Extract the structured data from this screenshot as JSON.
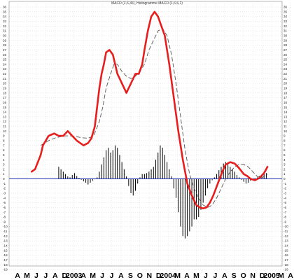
{
  "chart_data": {
    "type": "line",
    "title": "MACD (2,6,36), Histogramme MACD (1,6,6,1)",
    "y_tick_labels": [
      "36",
      "35",
      "34",
      "33",
      "32",
      "31",
      "30",
      "29",
      "28",
      "27",
      "26",
      "25",
      "24",
      "23",
      "22",
      "21",
      "20",
      "19",
      "18",
      "17",
      "16",
      "15",
      "14",
      "13",
      "12",
      "11",
      "10",
      "9",
      "8",
      "7",
      "6",
      "5",
      "4",
      "3",
      "2",
      "1",
      "0",
      "-1",
      "-2",
      "-3",
      "-4",
      "-5",
      "-6",
      "-7",
      "-8",
      "-9",
      "-10",
      "-11",
      "-12",
      "-13",
      "-14",
      "-15",
      "-16",
      "-17",
      "-18",
      "-19"
    ],
    "ylim": [
      -19,
      36
    ],
    "xlim": [
      0,
      24.2
    ],
    "x_tick_labels": [
      "A",
      "M",
      "J",
      "J",
      "A",
      "D",
      "2003",
      "A",
      "M",
      "J",
      "J",
      "A",
      "S",
      "O",
      "N",
      "D",
      "2004",
      "M",
      "A",
      "M",
      "J",
      "J",
      "A",
      "S",
      "O",
      "N",
      "D",
      "2005",
      "M",
      "A"
    ],
    "grid": true,
    "zero_line": 0,
    "series": [
      {
        "style": "thick",
        "color": "#e61e1e",
        "x": [
          2.0,
          2.3,
          2.8,
          3.0,
          3.5,
          4.0,
          4.4,
          4.8,
          5.2,
          5.6,
          6.0,
          6.6,
          7.0,
          7.3,
          7.6,
          7.8,
          8.0,
          8.2,
          8.4,
          8.6,
          8.9,
          9.2,
          9.6,
          10.0,
          10.4,
          10.7,
          11.0,
          11.2,
          11.5,
          11.8,
          12.0,
          12.3,
          12.6,
          12.9,
          13.2,
          13.5,
          13.8,
          14.2,
          14.6,
          15.0,
          15.4,
          15.8,
          16.2,
          16.6,
          16.9,
          17.2,
          17.5,
          17.8,
          18.1,
          18.5,
          18.9,
          19.2,
          19.6,
          20.0,
          20.4,
          20.8,
          21.1,
          21.4,
          21.8,
          22.2,
          22.6,
          22.9
        ],
        "y": [
          1.5,
          2,
          5,
          7,
          9,
          9.5,
          9,
          9,
          10,
          9,
          8,
          7,
          7.5,
          8.5,
          11,
          15,
          19,
          22,
          24,
          26.5,
          27,
          26,
          22,
          20,
          18,
          19.5,
          21,
          22,
          22,
          24,
          27,
          31,
          34,
          35,
          34,
          32,
          30,
          24,
          17,
          10,
          4,
          -1,
          -3.5,
          -5.5,
          -6,
          -6.2,
          -6,
          -5,
          -3.5,
          -1,
          1.5,
          3,
          3.5,
          3.2,
          2.2,
          1,
          0.6,
          0,
          -0.3,
          0.2,
          1.2,
          2.5
        ]
      },
      {
        "style": "dashed",
        "color": "#555555",
        "x": [
          2.8,
          3.5,
          4.0,
          4.5,
          5.0,
          5.5,
          6.0,
          6.5,
          7.0,
          7.5,
          8.0,
          8.3,
          8.6,
          9.0,
          9.3,
          9.6,
          10.0,
          10.4,
          10.8,
          11.2,
          11.6,
          12.0,
          12.4,
          12.8,
          13.2,
          13.6,
          14.0,
          14.4,
          14.8,
          15.2,
          15.6,
          16.0,
          16.4,
          16.8,
          17.2,
          17.6,
          18.0,
          18.4,
          18.8,
          19.2,
          19.6,
          20.0,
          20.4,
          20.8,
          21.2,
          21.6,
          22.0,
          22.4,
          22.9
        ],
        "y": [
          7,
          8,
          8.5,
          8.8,
          9,
          9,
          8.8,
          8.6,
          8.5,
          9,
          12,
          15,
          19,
          22,
          24,
          24,
          22.5,
          21.5,
          21,
          21.5,
          22.5,
          24,
          27,
          29,
          31,
          31.5,
          30,
          26,
          20,
          13,
          6,
          1,
          -2,
          -4,
          -5.5,
          -6,
          -5.5,
          -4,
          -2,
          0,
          1.5,
          2.5,
          3,
          3,
          2.5,
          1.5,
          0.5,
          0.2,
          1
        ]
      }
    ],
    "histogram": {
      "color": "#000000",
      "x": [
        4.4,
        4.6,
        4.8,
        5.0,
        5.2,
        5.4,
        5.6,
        5.8,
        6.0,
        6.2,
        6.4,
        6.6,
        6.8,
        7.0,
        7.2,
        7.4,
        7.6,
        7.8,
        8.0,
        8.2,
        8.4,
        8.6,
        8.8,
        9.0,
        9.2,
        9.4,
        9.6,
        9.8,
        10.0,
        10.2,
        10.4,
        10.6,
        10.8,
        11.0,
        11.2,
        11.4,
        11.6,
        11.8,
        12.0,
        12.2,
        12.4,
        12.6,
        12.8,
        13.0,
        13.2,
        13.4,
        13.6,
        13.8,
        14.0,
        14.2,
        14.4,
        14.6,
        14.8,
        15.0,
        15.2,
        15.4,
        15.6,
        15.8,
        16.0,
        16.2,
        16.4,
        16.6,
        16.8,
        17.0,
        17.2,
        17.4,
        17.6,
        17.8,
        18.0,
        18.2,
        18.4,
        18.6,
        18.8,
        19.0,
        19.2,
        19.4,
        19.6,
        19.8,
        20.0,
        20.2,
        20.4,
        20.6,
        20.8,
        21.0,
        21.2,
        21.4,
        21.6,
        21.8,
        22.0,
        22.2,
        22.4,
        22.6,
        22.8
      ],
      "y": [
        2.5,
        2,
        1.5,
        1,
        0.5,
        0.3,
        0.8,
        1.2,
        0.6,
        0.2,
        -0.2,
        -0.5,
        -0.8,
        -1.2,
        -0.8,
        -0.4,
        -0.1,
        0.3,
        1.5,
        3,
        4.5,
        6,
        6.5,
        5.5,
        6,
        7,
        6.5,
        5,
        3.5,
        2,
        0.5,
        -1.5,
        -3,
        -3.5,
        -2.5,
        -1,
        0.3,
        1,
        1,
        1.2,
        1.5,
        2,
        2.5,
        4,
        5.5,
        7,
        6.5,
        5,
        3.5,
        2,
        0.5,
        -2,
        -4,
        -7,
        -10,
        -12,
        -12.5,
        -12,
        -11,
        -10,
        -8.5,
        -8.5,
        -8,
        -6.5,
        -5,
        -3.5,
        -2,
        -1,
        -0.3,
        0.3,
        1,
        1.8,
        2.5,
        3.2,
        3.5,
        3,
        2.5,
        2,
        1.5,
        0.8,
        0.3,
        -0.2,
        -0.6,
        -1,
        -0.8,
        -0.4,
        -0.1,
        0.1,
        0.3,
        0.6,
        0.8,
        1,
        1.2
      ]
    }
  }
}
